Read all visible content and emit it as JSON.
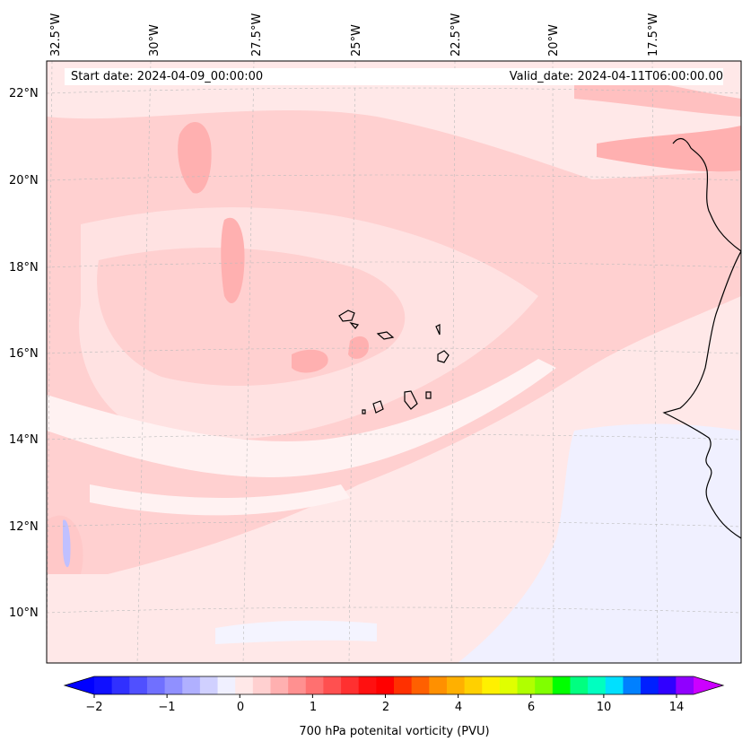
{
  "header": {
    "start_date": "Start date: 2024-04-09_00:00:00",
    "valid_date": "Valid_date: 2024-04-11T06:00:00.00"
  },
  "longitude_labels": [
    "32.5°W",
    "30°W",
    "27.5°W",
    "25°W",
    "22.5°W",
    "20°W",
    "17.5°W"
  ],
  "latitude_labels": [
    "22°N",
    "20°N",
    "18°N",
    "16°N",
    "14°N",
    "12°N",
    "10°N"
  ],
  "colorbar": {
    "label": "700 hPa potenital vorticity (PVU)",
    "ticks": [
      "−2",
      "−1",
      "0",
      "1",
      "2",
      "4",
      "6",
      "10",
      "14"
    ],
    "colors": [
      "#1010ff",
      "#3030ff",
      "#5050ff",
      "#7070ff",
      "#9090ff",
      "#b0b0ff",
      "#d0d0ff",
      "#f0f0ff",
      "#ffe8e8",
      "#ffd0d0",
      "#ffb0b0",
      "#ff9090",
      "#ff7070",
      "#ff5050",
      "#ff3030",
      "#ff1010",
      "#ff0000",
      "#ff3000",
      "#ff6000",
      "#ff9000",
      "#ffb000",
      "#ffd000",
      "#fff000",
      "#e0ff00",
      "#b0ff00",
      "#80ff00",
      "#00ff00",
      "#00ff80",
      "#00ffc0",
      "#00e0ff",
      "#0080ff",
      "#0020ff",
      "#3000ff",
      "#9000ff"
    ],
    "under_color": "#0000ff",
    "over_color": "#cc00ff"
  },
  "map": {
    "background_color": "#ffe8e8",
    "features": [
      "Cape Verde islands",
      "West African coastline"
    ]
  }
}
